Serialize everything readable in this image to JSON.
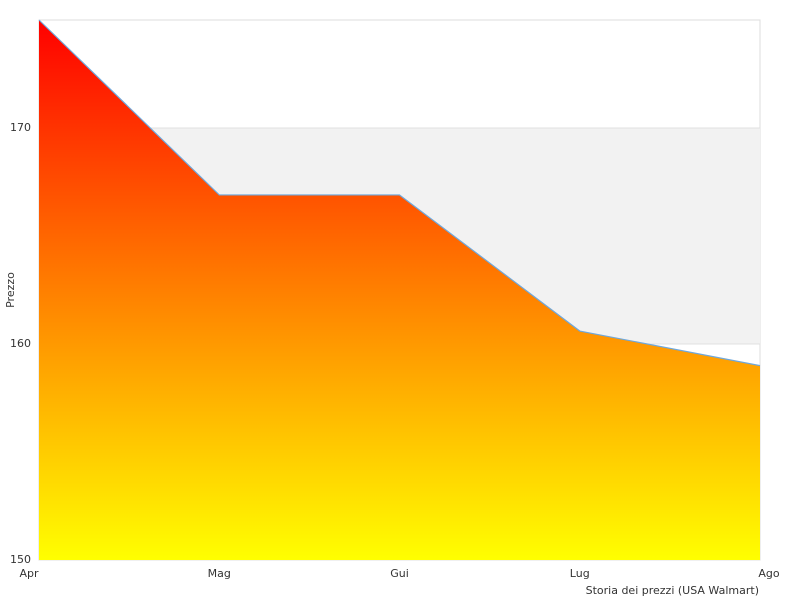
{
  "chart_data": {
    "type": "area",
    "categories": [
      "Apr",
      "Mag",
      "Gui",
      "Lug",
      "Ago"
    ],
    "values": [
      175,
      166.9,
      166.9,
      160.6,
      159
    ],
    "xlabel": "Storia dei prezzi (USA Walmart)",
    "ylabel": "Prezzo",
    "ylim": [
      150,
      175
    ],
    "yticks": [
      150,
      160,
      170
    ],
    "grid": true,
    "line_color": "#6fa8dc",
    "fill_gradient": [
      "#ff0000",
      "#ffff00"
    ],
    "band_color": "#f2f2f2"
  }
}
